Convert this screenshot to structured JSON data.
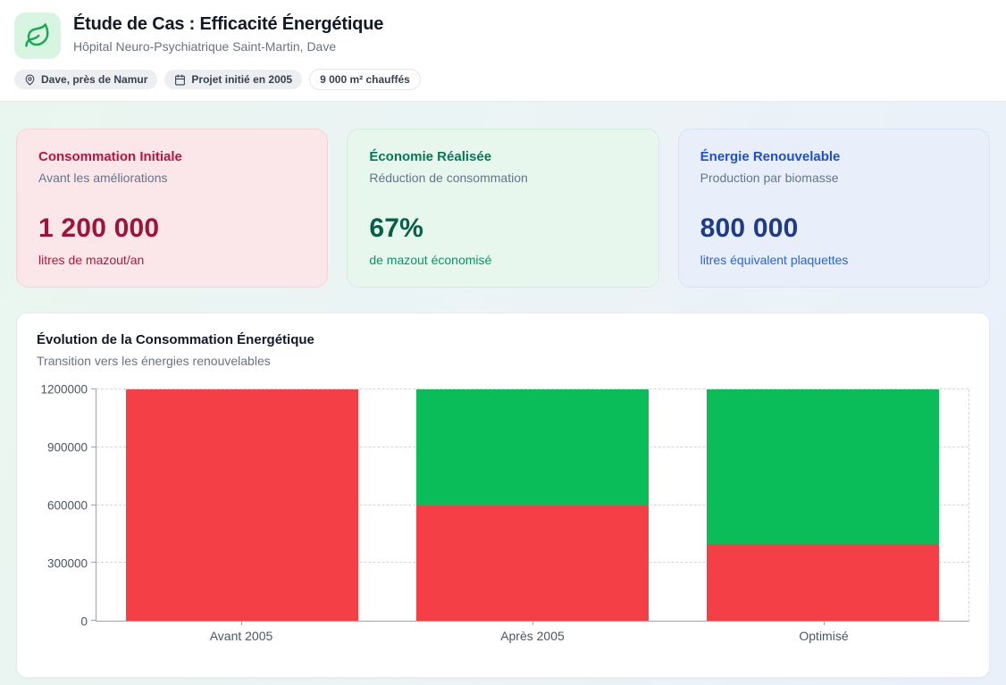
{
  "header": {
    "title": "Étude de Cas : Efficacité Énergétique",
    "subtitle": "Hôpital Neuro-Psychiatrique Saint-Martin, Dave",
    "badges": [
      {
        "icon": "map-pin-icon",
        "label": "Dave, près de Namur"
      },
      {
        "icon": "calendar-icon",
        "label": "Projet initié en 2005"
      },
      {
        "icon": null,
        "label": "9 000 m² chauffés"
      }
    ]
  },
  "stat_cards": [
    {
      "accent": "red",
      "title": "Consommation Initiale",
      "subtitle": "Avant les améliorations",
      "value": "1 200 000",
      "unit": "litres de mazout/an"
    },
    {
      "accent": "green",
      "title": "Économie Réalisée",
      "subtitle": "Réduction de consommation",
      "value": "67%",
      "unit": "de mazout économisé"
    },
    {
      "accent": "blue",
      "title": "Énergie Renouvelable",
      "subtitle": "Production par biomasse",
      "value": "800 000",
      "unit": "litres équivalent plaquettes"
    }
  ],
  "chart_data": {
    "type": "bar",
    "stacked": true,
    "title": "Évolution de la Consommation Énergétique",
    "subtitle": "Transition vers les énergies renouvelables",
    "categories": [
      "Avant 2005",
      "Après 2005",
      "Optimisé"
    ],
    "series": [
      {
        "name": "rouge",
        "color": "#f43f46",
        "values": [
          1200000,
          600000,
          400000
        ]
      },
      {
        "name": "vert",
        "color": "#0abd58",
        "values": [
          0,
          600000,
          800000
        ]
      }
    ],
    "ylim": [
      0,
      1200000
    ],
    "yticks": [
      {
        "value": 0,
        "label": "0"
      },
      {
        "value": 300000,
        "label": "300000"
      },
      {
        "value": 600000,
        "label": "600000"
      },
      {
        "value": 900000,
        "label": "900000"
      },
      {
        "value": 1200000,
        "label": "1200000"
      }
    ],
    "grid": "horizontal-dashed",
    "legend": "none"
  },
  "theme": {
    "leaf_bg": "#d8f5e2",
    "leaf_stroke": "#1ea854",
    "card_red_bg": "#fbe7e9",
    "card_red_border": "#f4d2d6",
    "card_red_title": "#be123c",
    "card_red_number": "#9f1239",
    "card_green_bg": "#e7f7ee",
    "card_green_border": "#d1eedd",
    "card_green_title": "#047857",
    "card_green_number": "#065f46",
    "card_green_label": "#059669",
    "card_blue_bg": "#e8effb",
    "card_blue_border": "#d6e2f6",
    "card_blue_title": "#1d4ed8",
    "card_blue_number": "#1e3a8a",
    "card_blue_label": "#2563eb",
    "bar_red": "#f43f46",
    "bar_green": "#0abd58"
  }
}
